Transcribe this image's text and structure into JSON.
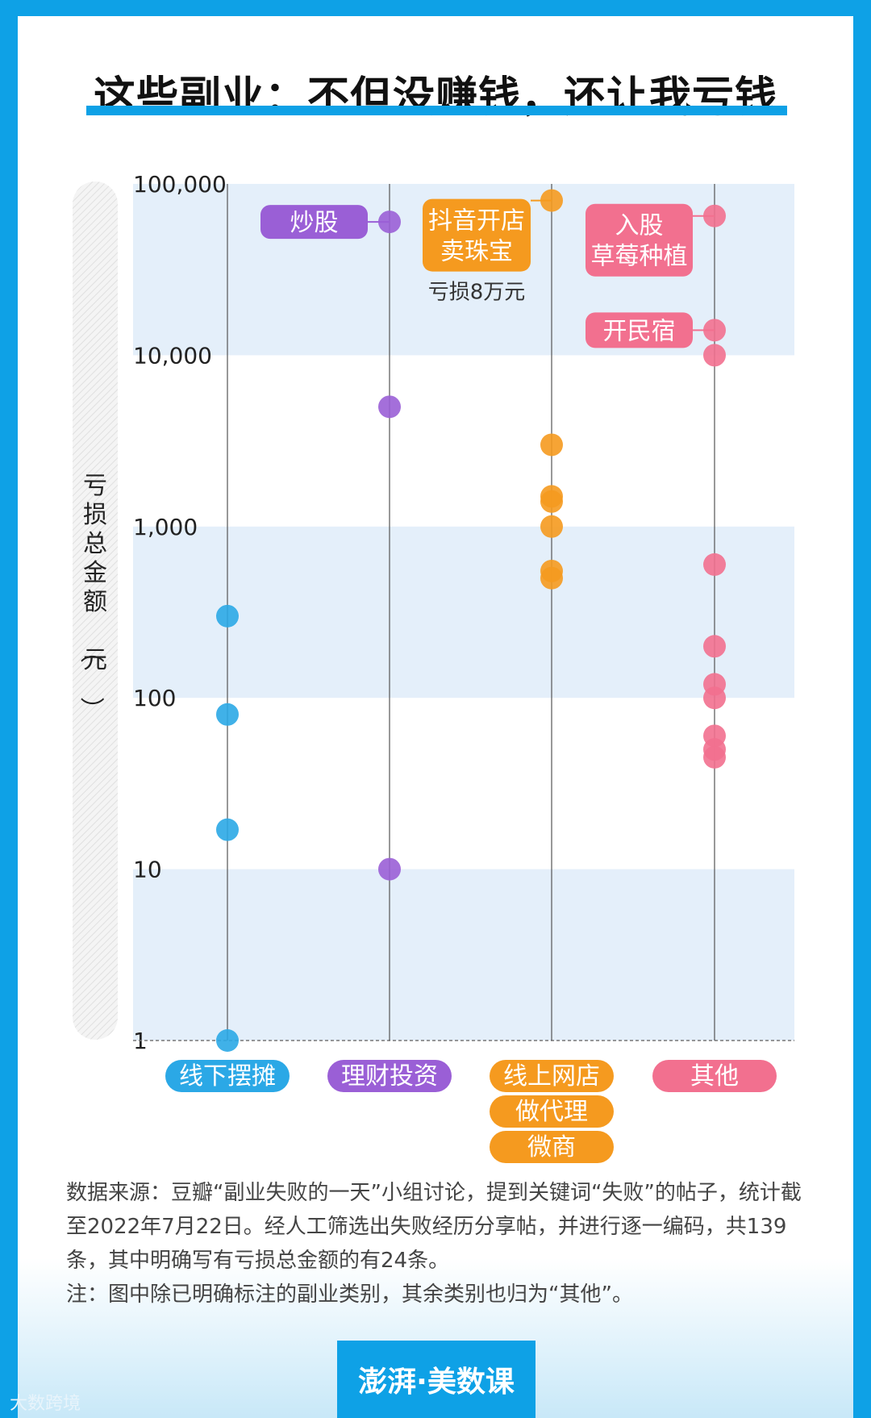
{
  "page": {
    "title": "这些副业：不但没赚钱，还让我亏钱"
  },
  "chart_data": {
    "type": "scatter",
    "title": "这些副业：不但没赚钱，还让我亏钱",
    "ylabel": "亏损总金额（元）",
    "yscale": "log",
    "ylim": [
      1,
      100000
    ],
    "yticks": [
      {
        "value": 100000,
        "label": "100,000"
      },
      {
        "value": 10000,
        "label": "10,000"
      },
      {
        "value": 1000,
        "label": "1,000"
      },
      {
        "value": 100,
        "label": "100"
      },
      {
        "value": 10,
        "label": "10"
      },
      {
        "value": 1,
        "label": "1"
      }
    ],
    "series": [
      {
        "name": "线下摆摊",
        "labels": [
          "线下摆摊"
        ],
        "color": "#2ba8e6",
        "values": [
          300,
          80,
          17,
          1
        ]
      },
      {
        "name": "理财投资",
        "labels": [
          "理财投资"
        ],
        "color": "#9a5fd6",
        "values": [
          60000,
          5000,
          10
        ]
      },
      {
        "name": "线上网店 做代理 微商",
        "labels": [
          "线上网店",
          "做代理",
          "微商"
        ],
        "color": "#f59a1f",
        "values": [
          80000,
          3000,
          1500,
          1400,
          1000,
          550,
          500
        ]
      },
      {
        "name": "其他",
        "labels": [
          "其他"
        ],
        "color": "#f2708f",
        "values": [
          65000,
          14000,
          10000,
          600,
          200,
          120,
          100,
          60,
          50,
          45
        ]
      }
    ],
    "annotations": [
      {
        "text": "炒股",
        "series": 1,
        "value": 60000
      },
      {
        "text": "抖音开店\n卖珠宝",
        "series": 2,
        "value": 80000,
        "note": "亏损8万元"
      },
      {
        "text": "入股\n草莓种植",
        "series": 3,
        "value": 65000
      },
      {
        "text": "开民宿",
        "series": 3,
        "value": 14000
      }
    ]
  },
  "notes": {
    "line1": "数据来源：豆瓣“副业失败的一天”小组讨论，提到关键词“失败”的帖子，统计截至2022年7月22日。经人工筛选出失败经历分享帖，并进行逐一编码，共139条，其中明确写有亏损总金额的有24条。",
    "line2": "注：图中除已明确标注的副业类别，其余类别也归为“其他”。"
  },
  "logo": {
    "text": "澎湃·美数课"
  },
  "watermark": {
    "text": "大数跨境"
  }
}
